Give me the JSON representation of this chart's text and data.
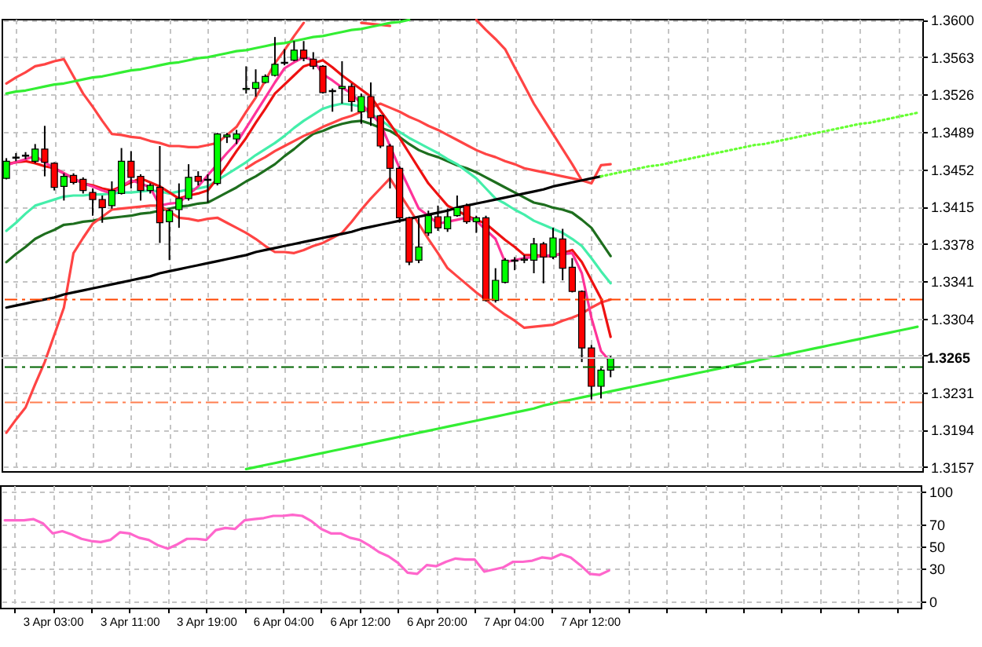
{
  "chart_data": [
    {
      "type": "candlestick",
      "categories": [
        null,
        null,
        null,
        null,
        null,
        null,
        null,
        null,
        null,
        null,
        null,
        null,
        null,
        null,
        null,
        null,
        null,
        null,
        null,
        null,
        null,
        null,
        null,
        null,
        null,
        null,
        null,
        null,
        null,
        null,
        null,
        null,
        null,
        null,
        null,
        null,
        null,
        null,
        null,
        null,
        null,
        null,
        null,
        null,
        null,
        null,
        null,
        null,
        null,
        null,
        null,
        null,
        null,
        null,
        null,
        null,
        null,
        null,
        null,
        null,
        null,
        null,
        null,
        null,
        null,
        null,
        null,
        null,
        null,
        null,
        null,
        null,
        null,
        null,
        null,
        null,
        null,
        null,
        null,
        null,
        null,
        null,
        null,
        null,
        null,
        null,
        null,
        null,
        null,
        null,
        null,
        null,
        null,
        null,
        null,
        null
      ],
      "ohlc": [
        [
          1.3443,
          1.3463,
          1.3442,
          1.346
        ],
        [
          1.3463,
          1.3468,
          1.346,
          1.3464
        ],
        [
          1.3465,
          1.3469,
          1.3462,
          1.3466
        ],
        [
          1.346,
          1.3477,
          1.3458,
          1.3472
        ],
        [
          1.3472,
          1.3495,
          1.3445,
          1.3459
        ],
        [
          1.3458,
          1.3459,
          1.3431,
          1.3434
        ],
        [
          1.3435,
          1.3448,
          1.3421,
          1.3445
        ],
        [
          1.3446,
          1.3448,
          1.3437,
          1.3439
        ],
        [
          1.3442,
          1.3444,
          1.3428,
          1.3431
        ],
        [
          1.3429,
          1.3433,
          1.3406,
          1.3422
        ],
        [
          1.3422,
          1.3426,
          1.3399,
          1.3414
        ],
        [
          1.3416,
          1.344,
          1.3413,
          1.3431
        ],
        [
          1.3428,
          1.3473,
          1.3427,
          1.346
        ],
        [
          1.346,
          1.347,
          1.3433,
          1.3444
        ],
        [
          1.3445,
          1.3447,
          1.3421,
          1.3431
        ],
        [
          1.3431,
          1.3438,
          1.3428,
          1.3436
        ],
        [
          1.3434,
          1.3475,
          1.3379,
          1.3399
        ],
        [
          1.34,
          1.3413,
          1.3362,
          1.3411
        ],
        [
          1.3412,
          1.3438,
          1.3394,
          1.3423
        ],
        [
          1.3423,
          1.3457,
          1.3421,
          1.3444
        ],
        [
          1.3445,
          1.345,
          1.3436,
          1.344
        ],
        [
          1.3442,
          1.3447,
          1.3419,
          1.3441
        ],
        [
          1.3438,
          1.3488,
          1.3436,
          1.3487
        ],
        [
          1.3484,
          1.3488,
          1.3478,
          1.3486
        ],
        [
          1.3482,
          1.3491,
          1.3477,
          1.3487
        ],
        [
          1.3531,
          1.3554,
          1.3527,
          1.3532
        ],
        [
          1.3532,
          1.3551,
          1.3524,
          1.3538
        ],
        [
          1.3538,
          1.3546,
          1.3537,
          1.3544
        ],
        [
          1.3545,
          1.3583,
          1.3544,
          1.3556
        ],
        [
          1.3557,
          1.3571,
          1.3555,
          1.3558
        ],
        [
          1.356,
          1.3579,
          1.3559,
          1.357
        ],
        [
          1.357,
          1.3579,
          1.3559,
          1.3562
        ],
        [
          1.3561,
          1.3568,
          1.3551,
          1.3554
        ],
        [
          1.3554,
          1.3555,
          1.3527,
          1.3528
        ],
        [
          1.353,
          1.3532,
          1.3509,
          1.3529
        ],
        [
          1.3532,
          1.3559,
          1.3517,
          1.3534
        ],
        [
          1.3534,
          1.3537,
          1.3509,
          1.3519
        ],
        [
          1.3509,
          1.3527,
          1.3497,
          1.3524
        ],
        [
          1.3524,
          1.3538,
          1.3495,
          1.3503
        ],
        [
          1.3505,
          1.3506,
          1.3473,
          1.3475
        ],
        [
          1.3475,
          1.3477,
          1.3433,
          1.3453
        ],
        [
          1.3453,
          1.3455,
          1.3399,
          1.3404
        ],
        [
          1.3404,
          1.3405,
          1.3357,
          1.336
        ],
        [
          1.3362,
          1.3404,
          1.3359,
          1.3375
        ],
        [
          1.3389,
          1.3411,
          1.3386,
          1.3406
        ],
        [
          1.3405,
          1.3416,
          1.3391,
          1.3394
        ],
        [
          1.3393,
          1.3413,
          1.339,
          1.3405
        ],
        [
          1.3406,
          1.3426,
          1.3405,
          1.3414
        ],
        [
          1.3416,
          1.3418,
          1.3398,
          1.34
        ],
        [
          1.34,
          1.3406,
          1.3389,
          1.3404
        ],
        [
          1.3404,
          1.3406,
          1.3321,
          1.3322
        ],
        [
          1.3322,
          1.3354,
          1.332,
          1.3342
        ],
        [
          1.334,
          1.3364,
          1.3339,
          1.3362
        ],
        [
          1.3362,
          1.3365,
          1.3352,
          1.3361
        ],
        [
          1.3362,
          1.3367,
          1.3359,
          1.3363
        ],
        [
          1.3362,
          1.3384,
          1.3349,
          1.3378
        ],
        [
          1.3378,
          1.338,
          1.3339,
          1.3365
        ],
        [
          1.3365,
          1.3394,
          1.3363,
          1.3384
        ],
        [
          1.3383,
          1.3393,
          1.3342,
          1.3354
        ],
        [
          1.3355,
          1.3364,
          1.333,
          1.3331
        ],
        [
          1.3331,
          1.3332,
          1.3261,
          1.3275
        ],
        [
          1.3275,
          1.3278,
          1.3224,
          1.3237
        ],
        [
          1.3237,
          1.3255,
          1.3225,
          1.3253
        ],
        [
          1.3253,
          1.3267,
          1.3246,
          1.3265
        ],
        null,
        null,
        null,
        null,
        null,
        null,
        null,
        null,
        null,
        null,
        null,
        null,
        null,
        null,
        null,
        null,
        null,
        null,
        null,
        null,
        null,
        null,
        null,
        null,
        null,
        null,
        null,
        null,
        null,
        null,
        null,
        null
      ],
      "colors": [
        "#00ff00",
        "#00ff00",
        "#00ff00",
        "#00ff00",
        "#ff0000",
        "#ff0000",
        "#00ff00",
        "#ff0000",
        "#ff0000",
        "#ff0000",
        "#ff0000",
        "#00ff00",
        "#00ff00",
        "#ff0000",
        "#ff0000",
        "#00ff00",
        "#ff0000",
        "#00ff00",
        "#00ff00",
        "#00ff00",
        "#ff0000",
        "#ff0000",
        "#00ff00",
        "#00ff00",
        "#00ff00",
        "#00ff00",
        "#00ff00",
        "#00ff00",
        "#00ff00",
        "#00ff00",
        "#00ff00",
        "#ff0000",
        "#ff0000",
        "#ff0000",
        "#ff0000",
        "#00ff00",
        "#ff0000",
        "#00ff00",
        "#ff0000",
        "#ff0000",
        "#ff0000",
        "#ff0000",
        "#ff0000",
        "#00ff00",
        "#00ff00",
        "#ff0000",
        "#00ff00",
        "#00ff00",
        "#ff0000",
        "#00ff00",
        "#ff0000",
        "#00ff00",
        "#00ff00",
        "#ff0000",
        "#00ff00",
        "#00ff00",
        "#ff0000",
        "#00ff00",
        "#ff0000",
        "#ff0000",
        "#ff0000",
        "#ff0000",
        "#00ff00",
        "#00ff00",
        null,
        null,
        null,
        null,
        null,
        null,
        null,
        null,
        null,
        null,
        null,
        null,
        null,
        null,
        null,
        null,
        null,
        null,
        null,
        null,
        null,
        null,
        null,
        null,
        null,
        null,
        null,
        null,
        null,
        null,
        null,
        null
      ],
      "series": [
        {
          "type": "line",
          "color": "#1e6e1e",
          "values": [
            1.336,
            1.3368,
            1.3375,
            1.3383,
            1.3388,
            1.3392,
            1.3397,
            1.3398,
            1.34,
            1.3401,
            1.3403,
            1.3404,
            1.3405,
            1.3406,
            1.3408,
            1.3409,
            1.3411,
            1.3413,
            1.3415,
            1.3416,
            1.3418,
            1.3419,
            1.3424,
            1.3429,
            1.3434,
            1.344,
            1.3445,
            1.3451,
            1.3457,
            1.3465,
            1.3472,
            1.348,
            1.3487,
            1.349,
            1.3494,
            1.3497,
            1.3499,
            1.35,
            1.3497,
            1.3493,
            1.349,
            1.3484,
            1.3477,
            1.3471,
            1.3467,
            1.3464,
            1.346,
            1.3456,
            1.3453,
            1.3449,
            1.3444,
            1.3439,
            1.3434,
            1.3429,
            1.3424,
            1.3419,
            1.3417,
            1.3414,
            1.3412,
            1.3409,
            1.3402,
            1.3394,
            1.338,
            1.3366,
            null,
            null,
            null,
            null,
            null,
            null,
            null,
            null,
            null,
            null,
            null,
            null,
            null,
            null,
            null,
            null,
            null,
            null,
            null,
            null,
            null,
            null,
            null,
            null,
            null,
            null,
            null,
            null,
            null,
            null,
            null,
            null
          ]
        },
        {
          "type": "line",
          "color": "#44eeaa",
          "values": [
            1.3391,
            1.3399,
            1.3408,
            1.3416,
            1.3419,
            1.3422,
            1.3425,
            1.3426,
            1.3426,
            1.3427,
            1.3427,
            1.3428,
            1.3429,
            1.3429,
            1.343,
            1.3431,
            1.343,
            1.3428,
            1.343,
            1.3432,
            1.3433,
            1.3435,
            1.3441,
            1.3447,
            1.3453,
            1.3459,
            1.3466,
            1.3472,
            1.3478,
            1.3485,
            1.3493,
            1.35,
            1.3506,
            1.3512,
            1.3515,
            1.3517,
            1.3516,
            1.3514,
            1.3507,
            1.3501,
            1.3494,
            1.3489,
            1.3483,
            1.3478,
            1.3473,
            1.3468,
            1.3462,
            1.3457,
            1.345,
            1.3443,
            1.3433,
            1.3423,
            1.3418,
            1.3412,
            1.3407,
            1.3401,
            1.3397,
            1.3393,
            1.3389,
            1.3383,
            1.3376,
            1.3364,
            1.3351,
            1.3339,
            null,
            null,
            null,
            null,
            null,
            null,
            null,
            null,
            null,
            null,
            null,
            null,
            null,
            null,
            null,
            null,
            null,
            null,
            null,
            null,
            null,
            null,
            null,
            null,
            null,
            null,
            null,
            null,
            null,
            null,
            null,
            null
          ]
        },
        {
          "type": "line",
          "color": "#ff4444",
          "values": [
            1.3537,
            1.3543,
            1.3548,
            1.3554,
            1.3556,
            1.3559,
            1.3561,
            1.3544,
            1.3527,
            1.3514,
            1.35,
            1.3487,
            1.3486,
            1.3484,
            1.3483,
            1.348,
            1.3478,
            1.3475,
            1.3475,
            1.3474,
            1.3474,
            1.3476,
            1.3478,
            1.3486,
            1.3494,
            1.3509,
            1.3523,
            1.354,
            1.3557,
            1.357,
            1.3584,
            1.3597,
            null,
            null,
            null,
            null,
            null,
            1.3597,
            1.3596,
            1.3595,
            1.3594,
            null,
            null,
            null,
            null,
            null,
            null,
            null,
            null,
            1.36,
            1.359,
            1.3581,
            1.3571,
            1.3553,
            1.3535,
            1.3517,
            1.3502,
            1.3487,
            1.3472,
            1.3457,
            1.3441,
            1.3438,
            1.3456,
            1.3457,
            null,
            null,
            null,
            null,
            null,
            null,
            null,
            null,
            null,
            null,
            null,
            null,
            null,
            null,
            null,
            null,
            null,
            null,
            null,
            null,
            null,
            null,
            null,
            null,
            null,
            null,
            null,
            null,
            null,
            null,
            null,
            null
          ]
        },
        {
          "type": "line",
          "color": "#ff4444",
          "values": [
            null,
            null,
            null,
            null,
            null,
            null,
            null,
            null,
            null,
            null,
            null,
            null,
            null,
            null,
            null,
            null,
            null,
            null,
            null,
            null,
            null,
            null,
            null,
            null,
            null,
            1.3453,
            1.3459,
            1.3464,
            1.347,
            1.3475,
            1.348,
            1.3485,
            1.3489,
            1.3494,
            1.3498,
            1.3502,
            1.3505,
            1.3509,
            1.3513,
            1.3517,
            1.3513,
            1.3509,
            1.3504,
            1.35,
            1.3495,
            1.3491,
            1.3486,
            1.3481,
            1.3476,
            1.3471,
            1.3467,
            1.3464,
            1.346,
            1.3457,
            1.3453,
            1.3451,
            1.3449,
            1.3447,
            1.3445,
            1.3443,
            1.3441,
            null,
            null,
            null,
            null,
            null,
            null,
            null,
            null,
            null,
            null,
            null,
            null,
            null,
            null,
            null,
            null,
            null,
            null,
            null,
            null,
            null,
            null,
            null,
            null,
            null,
            null,
            null,
            null,
            null,
            null,
            null,
            null,
            null,
            null,
            null
          ]
        },
        {
          "type": "line",
          "color": "#ff4444",
          "values": [
            1.3191,
            1.3204,
            1.3216,
            1.3239,
            1.3261,
            1.3288,
            1.3315,
            1.3369,
            1.3384,
            1.3398,
            1.3405,
            1.3412,
            1.3413,
            1.3414,
            1.3415,
            1.3416,
            1.3416,
            1.341,
            1.3404,
            1.3403,
            1.3401,
            1.3403,
            1.3404,
            1.3399,
            1.3394,
            1.3389,
            1.3383,
            1.3376,
            1.337,
            1.337,
            1.3369,
            1.3372,
            1.3376,
            1.3379,
            1.3384,
            1.3389,
            1.34,
            1.3412,
            1.3423,
            1.3433,
            1.3443,
            1.3428,
            1.3413,
            1.3398,
            1.3383,
            1.3369,
            1.3354,
            1.3346,
            1.3338,
            1.333,
            1.3323,
            1.3315,
            1.3308,
            1.3302,
            1.3295,
            1.3296,
            1.3297,
            1.3298,
            1.3302,
            1.3305,
            1.3309,
            1.3315,
            1.332,
            1.3323,
            null,
            null,
            null,
            null,
            null,
            null,
            null,
            null,
            null,
            null,
            null,
            null,
            null,
            null,
            null,
            null,
            null,
            null,
            null,
            null,
            null,
            null,
            null,
            null,
            null,
            null,
            null,
            null,
            null,
            null,
            null,
            null
          ]
        },
        {
          "type": "line",
          "color": "#ee1111",
          "values": [
            1.3457,
            1.3459,
            1.346,
            1.3458,
            1.3455,
            1.3453,
            1.3448,
            1.3443,
            1.3438,
            1.3436,
            1.3433,
            1.3431,
            1.3435,
            1.3439,
            1.3443,
            1.3439,
            1.3435,
            1.3429,
            1.3423,
            1.3426,
            1.3428,
            1.3431,
            1.3443,
            1.3456,
            1.347,
            1.3483,
            1.3498,
            1.3512,
            1.3527,
            1.3536,
            1.3545,
            1.3554,
            1.3557,
            1.356,
            1.3553,
            1.3545,
            1.3538,
            1.3531,
            1.3524,
            1.351,
            1.3497,
            1.3483,
            1.3468,
            1.3453,
            1.3438,
            1.3427,
            1.3416,
            1.3411,
            1.3406,
            1.3402,
            1.3398,
            1.339,
            1.3382,
            1.3375,
            1.3367,
            1.3367,
            1.3366,
            1.3366,
            1.3369,
            1.3372,
            1.336,
            1.3342,
            1.3324,
            1.3286,
            null,
            null,
            null,
            null,
            null,
            null,
            null,
            null,
            null,
            null,
            null,
            null,
            null,
            null,
            null,
            null,
            null,
            null,
            null,
            null,
            null,
            null,
            null,
            null,
            null,
            null,
            null,
            null,
            null,
            null,
            null,
            null
          ]
        },
        {
          "type": "line",
          "color": "#ff3399",
          "values": [
            1.3456,
            1.3459,
            1.3462,
            1.3465,
            1.3459,
            1.3453,
            1.3448,
            1.3443,
            1.3438,
            1.3435,
            1.3431,
            1.3428,
            1.3435,
            1.3441,
            1.3438,
            1.3434,
            1.3416,
            1.3418,
            1.3419,
            1.3427,
            1.3435,
            1.3446,
            1.3457,
            1.3468,
            1.3478,
            1.3493,
            1.3508,
            1.3523,
            1.3538,
            1.3552,
            1.3558,
            1.3563,
            1.356,
            1.3546,
            1.354,
            1.3533,
            1.3527,
            1.3517,
            1.3507,
            1.3497,
            1.3475,
            1.3453,
            1.3433,
            1.3413,
            1.3406,
            1.3398,
            1.34,
            1.3402,
            1.3404,
            1.3401,
            1.3392,
            1.3383,
            1.336,
            1.3362,
            1.3364,
            1.3365,
            1.3366,
            1.3367,
            1.3368,
            1.3369,
            1.3349,
            1.3305,
            1.3272,
            1.3261,
            null,
            null,
            null,
            null,
            null,
            null,
            null,
            null,
            null,
            null,
            null,
            null,
            null,
            null,
            null,
            null,
            null,
            null,
            null,
            null,
            null,
            null,
            null,
            null,
            null,
            null,
            null,
            null,
            null,
            null,
            null,
            null
          ]
        },
        {
          "type": "line",
          "color": "#33ee33",
          "values": [
            1.3527,
            1.3529,
            1.353,
            1.3532,
            1.3534,
            1.3536,
            1.3537,
            1.3539,
            1.3541,
            1.3543,
            1.3544,
            1.3546,
            1.3548,
            1.355,
            1.3551,
            1.3553,
            1.3555,
            1.3557,
            1.3558,
            1.356,
            1.3562,
            1.3563,
            1.3565,
            1.3567,
            1.3569,
            1.357,
            1.3572,
            1.3574,
            1.3576,
            1.3577,
            1.3579,
            1.3581,
            1.3583,
            1.3584,
            1.3586,
            1.3588,
            1.359,
            1.3591,
            1.3593,
            1.3595,
            1.3597,
            1.3598,
            1.36,
            null,
            null,
            null,
            null,
            null,
            null,
            null,
            null,
            null,
            null,
            null,
            null,
            null,
            null,
            null,
            null,
            null,
            null,
            null,
            null,
            null,
            null,
            null,
            null,
            null,
            null,
            null,
            null,
            null,
            null,
            null,
            null,
            null,
            null,
            null,
            null,
            null,
            null,
            null,
            null,
            null,
            null,
            null,
            null,
            null,
            null,
            null,
            null,
            null,
            null,
            null,
            null,
            null
          ]
        },
        {
          "type": "line",
          "color": "#33ee33",
          "values": [
            null,
            null,
            null,
            null,
            null,
            null,
            null,
            null,
            null,
            null,
            null,
            null,
            null,
            null,
            null,
            null,
            null,
            null,
            null,
            null,
            null,
            null,
            null,
            null,
            null,
            1.3155,
            1.3157,
            1.3159,
            1.3161,
            1.3163,
            1.3165,
            1.3167,
            1.3169,
            1.3171,
            1.3173,
            1.3175,
            1.3177,
            1.3179,
            1.3181,
            1.3183,
            1.3185,
            1.3187,
            1.3189,
            1.3191,
            1.3193,
            1.3195,
            1.3197,
            1.3199,
            1.3201,
            1.3203,
            1.3205,
            1.3207,
            1.3209,
            1.3211,
            1.3213,
            1.3215,
            1.3218,
            1.322,
            1.3222,
            1.3224,
            1.3226,
            1.3228,
            1.323,
            1.3232,
            1.3234,
            1.3236,
            1.3238,
            1.324,
            1.3242,
            1.3244,
            1.3246,
            1.3248,
            1.325,
            1.3252,
            1.3254,
            1.3256,
            1.3258,
            1.326,
            1.3262,
            1.3264,
            1.3266,
            1.3268,
            1.327,
            1.3272,
            1.3274,
            1.3276,
            1.3278,
            1.328,
            1.3282,
            1.3284,
            1.3286,
            1.3288,
            1.329,
            1.3292,
            1.3294,
            1.3296
          ]
        },
        {
          "type": "line",
          "color": "#000000",
          "values": [
            1.3315,
            1.3317,
            1.3319,
            1.3321,
            1.3323,
            1.3325,
            1.3328,
            1.333,
            1.3332,
            1.3334,
            1.3336,
            1.3338,
            1.334,
            1.3342,
            1.3344,
            1.3346,
            1.3349,
            1.3351,
            1.3353,
            1.3355,
            1.3357,
            1.3359,
            1.3361,
            1.3363,
            1.3365,
            1.3367,
            1.337,
            1.3372,
            1.3374,
            1.3376,
            1.3378,
            1.338,
            1.3382,
            1.3384,
            1.3386,
            1.3388,
            1.339,
            1.3393,
            1.3395,
            1.3397,
            1.3399,
            1.3401,
            1.3403,
            1.3405,
            1.3407,
            1.3409,
            1.3411,
            1.3414,
            1.3416,
            1.3418,
            1.342,
            1.3422,
            1.3424,
            1.3426,
            1.3428,
            1.343,
            1.3432,
            1.3435,
            1.3437,
            1.3439,
            1.3441,
            1.3443,
            1.3445,
            null,
            null,
            null,
            null,
            null,
            null,
            null,
            null,
            null,
            null,
            null,
            null,
            null,
            null,
            null,
            null,
            null,
            null,
            null,
            null,
            null,
            null,
            null,
            null,
            null,
            null,
            null,
            null,
            null,
            null,
            null,
            null,
            null
          ]
        },
        {
          "type": "line",
          "color": "#66ff33",
          "line_style": "dotted",
          "values": [
            null,
            null,
            null,
            null,
            null,
            null,
            null,
            null,
            null,
            null,
            null,
            null,
            null,
            null,
            null,
            null,
            null,
            null,
            null,
            null,
            null,
            null,
            null,
            null,
            null,
            null,
            null,
            null,
            null,
            null,
            null,
            null,
            null,
            null,
            null,
            null,
            null,
            null,
            null,
            null,
            null,
            null,
            null,
            null,
            null,
            null,
            null,
            null,
            null,
            null,
            null,
            null,
            null,
            null,
            null,
            null,
            null,
            null,
            null,
            null,
            null,
            null,
            1.3445,
            1.3447,
            1.3449,
            1.3451,
            1.3453,
            1.3455,
            1.3456,
            1.3458,
            1.346,
            1.3462,
            1.3464,
            1.3466,
            1.3468,
            1.347,
            1.3472,
            1.3474,
            1.3476,
            1.3477,
            1.3479,
            1.3481,
            1.3483,
            1.3485,
            1.3487,
            1.3489,
            1.3491,
            1.3493,
            1.3495,
            1.3497,
            1.3498,
            1.35,
            1.3502,
            1.3504,
            1.3506,
            1.3508
          ]
        }
      ],
      "ref_lines": [
        {
          "axis": "y",
          "value": 1.3323,
          "color": "#ff4500",
          "line_style": "dashed"
        },
        {
          "axis": "y",
          "value": 1.3256,
          "color": "#006400",
          "line_style": "dashed"
        },
        {
          "axis": "y",
          "value": 1.3221,
          "color": "#ff7f50",
          "line_style": "dashed"
        },
        {
          "axis": "y",
          "value": 1.3265,
          "color": "#c0c0c0",
          "label": "1.3265"
        }
      ],
      "ylim": [
        1.3153,
        1.3601
      ],
      "yticks": [
        1.3157,
        1.3194,
        1.3231,
        {
          "value": 1.3268,
          "label": null
        },
        1.3304,
        1.3341,
        1.3378,
        1.3415,
        1.3452,
        1.3489,
        1.3526,
        1.3563,
        {
          "value": 1.36,
          "label": "1.3600"
        }
      ],
      "tick_labels": "y",
      "grid": true
    },
    {
      "type": "line",
      "categories": [
        null,
        null,
        null,
        null,
        null,
        "3 Apr 03:00",
        null,
        null,
        null,
        null,
        null,
        null,
        null,
        "3 Apr 11:00",
        null,
        null,
        null,
        null,
        null,
        null,
        null,
        "3 Apr 19:00",
        null,
        null,
        null,
        null,
        null,
        null,
        null,
        "6 Apr 04:00",
        null,
        null,
        null,
        null,
        null,
        null,
        null,
        "6 Apr 12:00",
        null,
        null,
        null,
        null,
        null,
        null,
        null,
        "6 Apr 20:00",
        null,
        null,
        null,
        null,
        null,
        null,
        null,
        "7 Apr 04:00",
        null,
        null,
        null,
        null,
        null,
        null,
        null,
        "7 Apr 12:00",
        null,
        null,
        null,
        null,
        null,
        null,
        null,
        null,
        null,
        null,
        null,
        null,
        null,
        null,
        null,
        null,
        null,
        null,
        null,
        null,
        null,
        null,
        null,
        null,
        null,
        null,
        null,
        null,
        null,
        null,
        null,
        null,
        null,
        null
      ],
      "values": [
        74,
        74,
        74,
        75,
        71,
        62,
        64,
        61,
        57,
        55,
        54,
        56,
        63,
        62,
        58,
        56,
        51,
        48,
        52,
        57,
        57,
        56,
        65,
        67,
        66,
        74,
        75,
        76,
        78,
        78,
        79,
        78,
        73,
        66,
        62,
        62,
        58,
        56,
        51,
        45,
        41,
        35,
        26,
        25,
        33,
        32,
        36,
        39,
        38,
        38,
        27,
        29,
        31,
        36,
        36,
        37,
        40,
        39,
        43,
        40,
        33,
        25,
        24,
        28,
        null,
        null,
        null,
        null,
        null,
        null,
        null,
        null,
        null,
        null,
        null,
        null,
        null,
        null,
        null,
        null,
        null,
        null,
        null,
        null,
        null,
        null,
        null,
        null,
        null,
        null,
        null,
        null,
        null,
        null,
        null,
        null
      ],
      "color": "#ff66cc",
      "ylim": [
        -6,
        106
      ],
      "yticks": [
        0,
        30,
        50,
        70,
        100
      ],
      "grid": true
    }
  ]
}
